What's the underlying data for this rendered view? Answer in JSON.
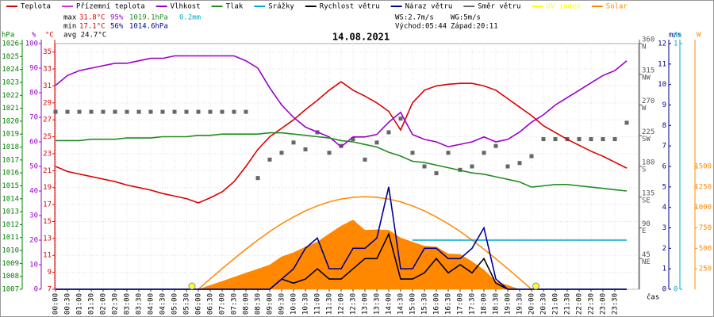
{
  "chart_data": {
    "type": "line",
    "title": "14.08.2021",
    "x_label": "čas",
    "x": [
      0,
      0.5,
      1,
      1.5,
      2,
      2.5,
      3,
      3.5,
      4,
      4.5,
      5,
      5.5,
      6,
      6.5,
      7,
      7.5,
      8,
      8.5,
      9,
      9.5,
      10,
      10.5,
      11,
      11.5,
      12,
      12.5,
      13,
      13.5,
      14,
      14.5,
      15,
      15.5,
      16,
      16.5,
      17,
      17.5,
      18,
      18.5,
      19,
      19.5,
      20,
      20.5,
      21,
      21.5,
      22,
      22.5,
      23,
      23.5,
      24
    ],
    "xlim": [
      0,
      24.5
    ],
    "xticks": [
      {
        "value": 0,
        "label": "00:00"
      },
      {
        "value": 0.5,
        "label": "00:30"
      },
      {
        "value": 1,
        "label": "01:00"
      },
      {
        "value": 1.5,
        "label": "01:30"
      },
      {
        "value": 2,
        "label": "02:00"
      },
      {
        "value": 2.5,
        "label": "02:30"
      },
      {
        "value": 3,
        "label": "03:00"
      },
      {
        "value": 3.5,
        "label": "03:30"
      },
      {
        "value": 4,
        "label": "04:00"
      },
      {
        "value": 4.5,
        "label": "04:30"
      },
      {
        "value": 5,
        "label": "05:00"
      },
      {
        "value": 5.5,
        "label": "05:30"
      },
      {
        "value": 6,
        "label": "06:00"
      },
      {
        "value": 6.5,
        "label": "06:30"
      },
      {
        "value": 7,
        "label": "07:00"
      },
      {
        "value": 7.5,
        "label": "07:30"
      },
      {
        "value": 8,
        "label": "08:00"
      },
      {
        "value": 8.5,
        "label": "08:30"
      },
      {
        "value": 9,
        "label": "09:00"
      },
      {
        "value": 9.5,
        "label": "09:30"
      },
      {
        "value": 10,
        "label": "10:00"
      },
      {
        "value": 10.5,
        "label": "10:30"
      },
      {
        "value": 11,
        "label": "11:00"
      },
      {
        "value": 11.5,
        "label": "11:30"
      },
      {
        "value": 12,
        "label": "12:00"
      },
      {
        "value": 12.5,
        "label": "12:30"
      },
      {
        "value": 13,
        "label": "13:00"
      },
      {
        "value": 13.5,
        "label": "13:30"
      },
      {
        "value": 14,
        "label": "14:00"
      },
      {
        "value": 14.5,
        "label": "14:30"
      },
      {
        "value": 15,
        "label": "15:00"
      },
      {
        "value": 15.5,
        "label": "15:30"
      },
      {
        "value": 16,
        "label": "16:00"
      },
      {
        "value": 16.5,
        "label": "16:30"
      },
      {
        "value": 17,
        "label": "17:00"
      },
      {
        "value": 17.5,
        "label": "17:30"
      },
      {
        "value": 18,
        "label": "18:00"
      },
      {
        "value": 18.5,
        "label": "18:30"
      },
      {
        "value": 19,
        "label": "19:00"
      },
      {
        "value": 19.5,
        "label": "19:30"
      },
      {
        "value": 20,
        "label": "20:00"
      },
      {
        "value": 20.5,
        "label": "20:30"
      },
      {
        "value": 21,
        "label": "21:00"
      },
      {
        "value": 21.5,
        "label": "21:30"
      },
      {
        "value": 22,
        "label": "22:00"
      },
      {
        "value": 22.5,
        "label": "22:30"
      },
      {
        "value": 23,
        "label": "23:00"
      },
      {
        "value": 23.5,
        "label": "23:30"
      }
    ],
    "grid": true,
    "axes": [
      {
        "unit": "hPa",
        "side": "left",
        "color": "#008000",
        "lim": [
          1007,
          1026
        ],
        "ticks": [
          1007,
          1008,
          1009,
          1010,
          1011,
          1012,
          1013,
          1014,
          1015,
          1016,
          1017,
          1018,
          1019,
          1020,
          1021,
          1022,
          1023,
          1024,
          1025,
          1026
        ]
      },
      {
        "unit": "%",
        "side": "left",
        "color": "#9900cc",
        "lim": [
          0,
          100
        ],
        "ticks": [
          0,
          10,
          20,
          30,
          40,
          50,
          60,
          70,
          80,
          90,
          100
        ]
      },
      {
        "unit": "°C",
        "side": "left",
        "color": "#dd0000",
        "lim": [
          7,
          36
        ],
        "ticks": [
          7,
          9,
          11,
          13,
          15,
          17,
          19,
          21,
          23,
          25,
          27,
          29,
          31,
          33,
          35
        ]
      },
      {
        "side": "right",
        "color": "#555555",
        "lim": [
          0,
          360
        ],
        "ticks": [
          45,
          90,
          135,
          180,
          225,
          270,
          315,
          360
        ],
        "tick_names": [
          "NE",
          "E",
          "SE",
          "S",
          "SW",
          "W",
          "NW",
          "N"
        ]
      },
      {
        "unit": "m/s",
        "side": "right",
        "color": "#000080",
        "lim": [
          0,
          12
        ],
        "ticks": [
          0,
          1,
          2,
          3,
          4,
          5,
          6,
          7,
          8,
          9,
          10,
          11,
          12
        ]
      },
      {
        "unit": "mm",
        "side": "right",
        "color": "#00aacc",
        "lim": [
          0,
          1
        ],
        "ticks": [
          0,
          1
        ]
      },
      {
        "unit": "W",
        "side": "right",
        "color": "#ff8800",
        "lim": [
          0,
          3000
        ],
        "ticks": [
          250,
          500,
          750,
          1000,
          1250,
          1500
        ]
      }
    ],
    "series": [
      {
        "name": "Teplota",
        "color": "#dd0000",
        "axis": 2,
        "style": "line",
        "values": [
          21.5,
          20.9,
          20.6,
          20.3,
          20.0,
          19.7,
          19.3,
          19.0,
          18.7,
          18.3,
          18.0,
          17.7,
          17.2,
          17.8,
          18.5,
          19.7,
          21.5,
          23.5,
          25.0,
          26.0,
          27.0,
          28.2,
          29.3,
          30.5,
          31.5,
          30.5,
          29.8,
          29.0,
          28.0,
          25.8,
          29.0,
          30.5,
          31.0,
          31.2,
          31.3,
          31.3,
          31.0,
          30.5,
          29.5,
          28.5,
          27.5,
          26.3,
          25.5,
          24.7,
          24.0,
          23.3,
          22.7,
          22.0,
          21.3
        ]
      },
      {
        "name": "Přízemní teplota",
        "color": "#cc33cc"
      },
      {
        "name": "Vlhkost",
        "color": "#9900cc",
        "axis": 1,
        "style": "line",
        "values": [
          83,
          87,
          89,
          90,
          91,
          92,
          92,
          93,
          94,
          94,
          95,
          95,
          95,
          95,
          95,
          95,
          93,
          90,
          82,
          75,
          70,
          66,
          64,
          62,
          58,
          62,
          62,
          63,
          68,
          72,
          63,
          61,
          60,
          58,
          59,
          60,
          62,
          60,
          61,
          64,
          68,
          71,
          75,
          78,
          81,
          84,
          87,
          89,
          93
        ]
      },
      {
        "name": "Tlak",
        "color": "#228b22",
        "axis": 0,
        "style": "line",
        "values": [
          1018.5,
          1018.5,
          1018.5,
          1018.6,
          1018.6,
          1018.6,
          1018.7,
          1018.7,
          1018.7,
          1018.8,
          1018.8,
          1018.8,
          1018.9,
          1018.9,
          1019.0,
          1019.0,
          1019.0,
          1019.0,
          1019.1,
          1019.1,
          1019.0,
          1018.9,
          1018.8,
          1018.7,
          1018.5,
          1018.4,
          1018.2,
          1018.0,
          1017.6,
          1017.3,
          1016.9,
          1016.8,
          1016.6,
          1016.4,
          1016.2,
          1016.0,
          1015.9,
          1015.7,
          1015.5,
          1015.3,
          1014.9,
          1015.0,
          1015.1,
          1015.1,
          1015.0,
          1014.9,
          1014.8,
          1014.7,
          1014.6
        ]
      },
      {
        "name": "Srážky",
        "color": "#00aacc",
        "axis": 5,
        "style": "line",
        "values": [
          null,
          null,
          null,
          null,
          null,
          null,
          null,
          null,
          null,
          null,
          null,
          null,
          null,
          null,
          null,
          null,
          null,
          null,
          null,
          null,
          null,
          null,
          null,
          null,
          null,
          null,
          null,
          null,
          null,
          null,
          0.2,
          0.2,
          0.2,
          0.2,
          0.2,
          0.2,
          0.2,
          0.2,
          0.2,
          0.2,
          0.2,
          0.2,
          0.2,
          0.2,
          0.2,
          0.2,
          0.2,
          0.2,
          0.2
        ]
      },
      {
        "name": "Rychlost větru",
        "color": "#000000",
        "axis": 4,
        "style": "line",
        "values": [
          0,
          0,
          0,
          0,
          0,
          0,
          0,
          0,
          0,
          0,
          0,
          0,
          0,
          0,
          0,
          0,
          0,
          0,
          0,
          0.5,
          0.3,
          0.5,
          1.0,
          0.5,
          0.5,
          1.0,
          1.5,
          1.5,
          2.7,
          0.5,
          0.5,
          0.8,
          1.5,
          0.8,
          1.2,
          0.8,
          1.5,
          0.3,
          0,
          0,
          0,
          0,
          0,
          0,
          0,
          0,
          0,
          0,
          0
        ]
      },
      {
        "name": "Náraz větru",
        "color": "#000099",
        "axis": 4,
        "style": "line",
        "values": [
          0,
          0,
          0,
          0,
          0,
          0,
          0,
          0,
          0,
          0,
          0,
          0,
          0,
          0,
          0,
          0,
          0,
          0,
          0,
          0.5,
          1.0,
          2.0,
          2.5,
          1.0,
          1.0,
          2.0,
          2.0,
          2.5,
          5.0,
          1.0,
          1.0,
          2.0,
          2.0,
          1.5,
          1.5,
          2.0,
          3.0,
          0.5,
          0,
          0,
          0,
          0,
          0,
          0,
          0,
          0,
          0,
          0,
          0
        ]
      },
      {
        "name": "Směr větru",
        "color": "#666666",
        "axis": 3,
        "style": "squares",
        "values": [
          260,
          260,
          260,
          260,
          260,
          260,
          260,
          260,
          260,
          260,
          260,
          260,
          260,
          260,
          260,
          260,
          260,
          163,
          190,
          200,
          215,
          205,
          230,
          200,
          210,
          220,
          190,
          215,
          230,
          250,
          200,
          180,
          170,
          200,
          175,
          180,
          200,
          210,
          180,
          185,
          195,
          220,
          220,
          220,
          220,
          220,
          220,
          220,
          244
        ]
      },
      {
        "name": "UV index",
        "color": "#ffff00"
      },
      {
        "name": "Solar",
        "color": "#ff8800",
        "axis": 6,
        "style": "area",
        "values": [
          0,
          0,
          0,
          0,
          0,
          0,
          0,
          0,
          0,
          0,
          0,
          0,
          0,
          50,
          100,
          150,
          200,
          250,
          300,
          400,
          450,
          520,
          580,
          680,
          775,
          850,
          725,
          730,
          725,
          630,
          580,
          530,
          520,
          435,
          430,
          340,
          240,
          100,
          50,
          0,
          0,
          0,
          0,
          0,
          0,
          0,
          0,
          0,
          0
        ],
        "clear_sky_values": [
          null,
          null,
          null,
          null,
          null,
          null,
          null,
          null,
          null,
          null,
          null,
          null,
          0,
          127,
          251,
          373,
          490,
          601,
          705,
          799,
          883,
          957,
          1018,
          1067,
          1102,
          1123,
          1130,
          1123,
          1102,
          1067,
          1018,
          957,
          883,
          799,
          705,
          601,
          490,
          373,
          251,
          127,
          0,
          null,
          null,
          null,
          null,
          null,
          null,
          null,
          null
        ]
      }
    ],
    "stats": {
      "max": {
        "label": "max",
        "items": [
          "31.8°C",
          "95%",
          "1019.1hPa",
          "0.2mm"
        ]
      },
      "min": {
        "label": "min",
        "items": [
          "17.1°C",
          "56%",
          "1014.6hPa"
        ]
      },
      "avg": "avg 24.7°C"
    },
    "wind_stats": [
      "WS:2.7m/s",
      "WG:5m/s"
    ],
    "sunrise": {
      "label": "Východ:",
      "time": "05:44"
    },
    "sunset": {
      "label": "Západ:",
      "time": "20:11"
    }
  }
}
